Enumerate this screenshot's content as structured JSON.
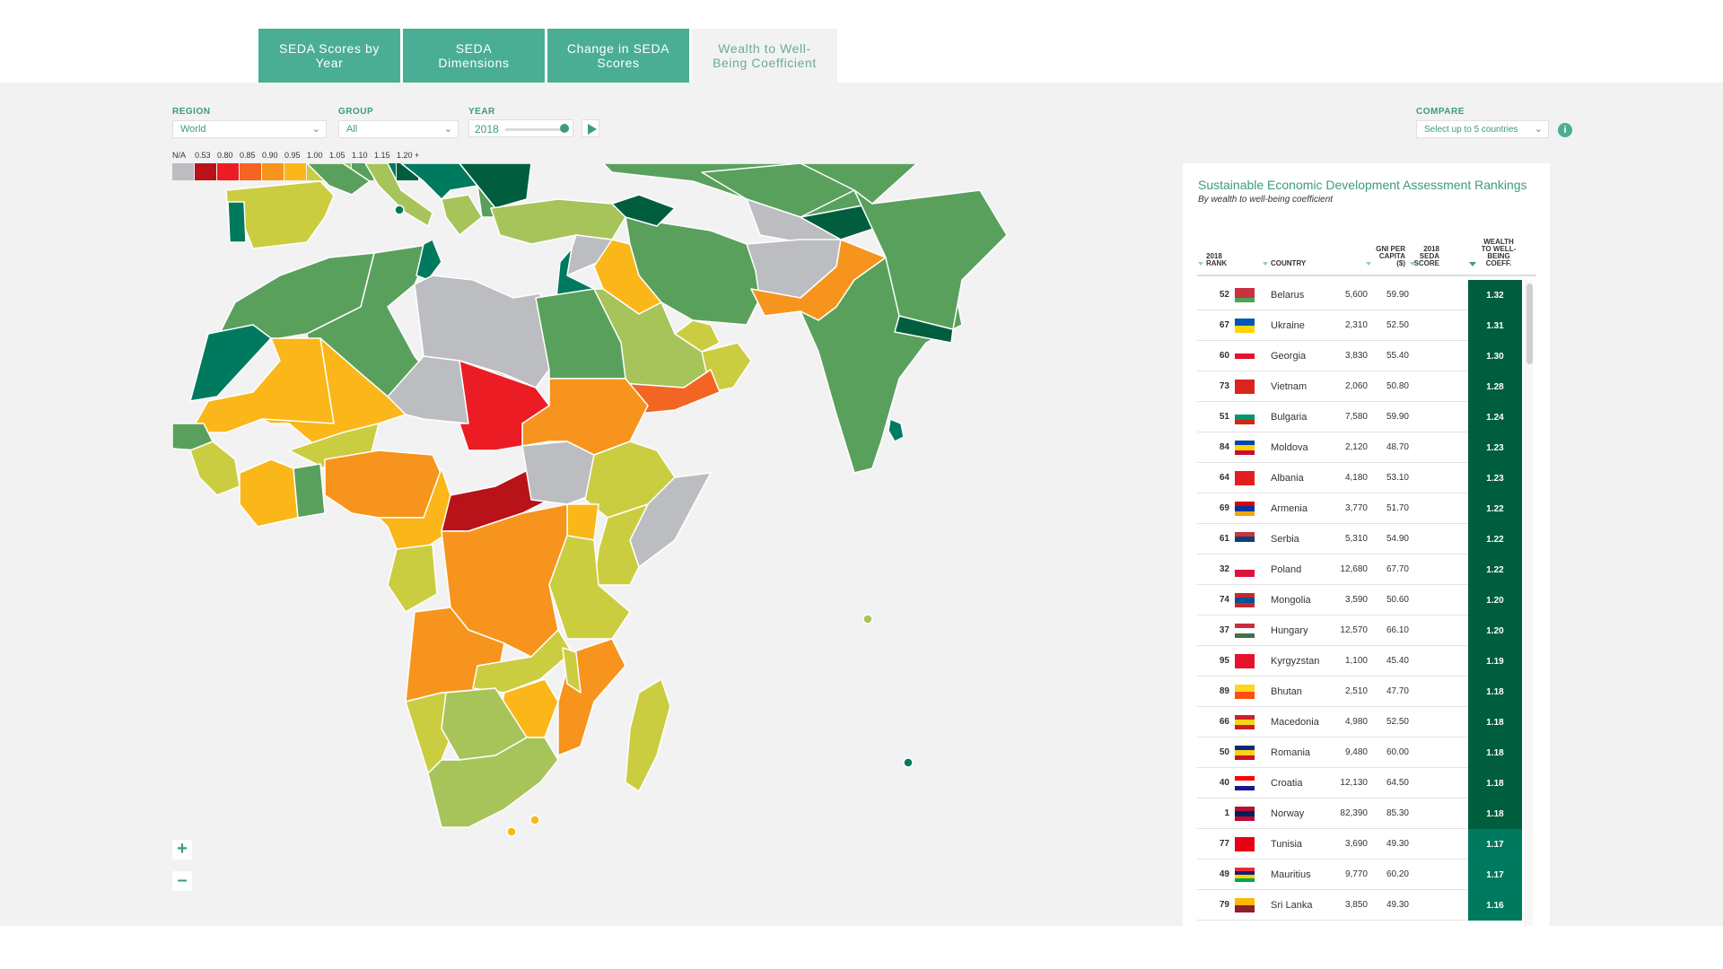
{
  "tabs": [
    {
      "label": "SEDA Scores by Year"
    },
    {
      "label": "SEDA Dimensions"
    },
    {
      "label": "Change in SEDA Scores"
    },
    {
      "label": "Wealth to Well-Being Coefficient"
    }
  ],
  "filters": {
    "region_label": "REGION",
    "region_value": "World",
    "group_label": "GROUP",
    "group_value": "All",
    "year_label": "YEAR",
    "year_value": "2018",
    "compare_label": "COMPARE",
    "compare_value": "Select up to 5 countries",
    "info_icon": "i"
  },
  "legend": {
    "labels": [
      "N/A",
      "0.53",
      "0.80",
      "0.85",
      "0.90",
      "0.95",
      "1.00",
      "1.05",
      "1.10",
      "1.15",
      "1.20 +"
    ],
    "colors": [
      "#bcbdc0",
      "#b81318",
      "#ec1c24",
      "#f26522",
      "#f7941d",
      "#fbb61a",
      "#cbcd41",
      "#a6c45a",
      "#5aa05d",
      "#007a5e",
      "#005e3f"
    ]
  },
  "map_colors": {
    "na": "#bcbdc0",
    "dark_red": "#b81318",
    "red": "#ec1c24",
    "red_orange": "#f26522",
    "orange": "#f7941d",
    "yellow": "#fbb61a",
    "yellow_green": "#cbcd41",
    "light_green": "#a6c45a",
    "green": "#5aa05d",
    "dark_green": "#007a5e",
    "darkest_green": "#005e3f",
    "ocean": "#f2f2f2"
  },
  "zoom": {
    "in_label": "+",
    "out_label": "–"
  },
  "rankings": {
    "title": "Sustainable Economic Development Assessment Rankings",
    "subtitle": "By wealth to well-being coefficient",
    "headers": {
      "rank": "2018 RANK",
      "country": "COUNTRY",
      "gni": "GNI PER CAPITA ($)",
      "seda": "2018 SEDA SCORE",
      "coef": "WEALTH TO WELL-BEING COEFF."
    },
    "rows": [
      {
        "rank": "52",
        "country": "Belarus",
        "gni": "5,600",
        "seda": "59.90",
        "coef": "1.32",
        "flag": [
          "#c8313e",
          "#c8313e",
          "#4aa657"
        ]
      },
      {
        "rank": "67",
        "country": "Ukraine",
        "gni": "2,310",
        "seda": "52.50",
        "coef": "1.31",
        "flag": [
          "#0057b7",
          "#ffd700"
        ]
      },
      {
        "rank": "60",
        "country": "Georgia",
        "gni": "3,830",
        "seda": "55.40",
        "coef": "1.30",
        "flag": [
          "#ffffff",
          "#e8112d",
          "#ffffff"
        ]
      },
      {
        "rank": "73",
        "country": "Vietnam",
        "gni": "2,060",
        "seda": "50.80",
        "coef": "1.28",
        "flag": [
          "#da251d"
        ]
      },
      {
        "rank": "51",
        "country": "Bulgaria",
        "gni": "7,580",
        "seda": "59.90",
        "coef": "1.24",
        "flag": [
          "#ffffff",
          "#00966e",
          "#d62612"
        ]
      },
      {
        "rank": "84",
        "country": "Moldova",
        "gni": "2,120",
        "seda": "48.70",
        "coef": "1.23",
        "flag": [
          "#0046ae",
          "#ffd200",
          "#cc092f"
        ]
      },
      {
        "rank": "64",
        "country": "Albania",
        "gni": "4,180",
        "seda": "53.10",
        "coef": "1.23",
        "flag": [
          "#e41e20"
        ]
      },
      {
        "rank": "69",
        "country": "Armenia",
        "gni": "3,770",
        "seda": "51.70",
        "coef": "1.22",
        "flag": [
          "#d90012",
          "#0033a0",
          "#f2a800"
        ]
      },
      {
        "rank": "61",
        "country": "Serbia",
        "gni": "5,310",
        "seda": "54.90",
        "coef": "1.22",
        "flag": [
          "#c6363c",
          "#0c4076",
          "#ffffff"
        ]
      },
      {
        "rank": "32",
        "country": "Poland",
        "gni": "12,680",
        "seda": "67.70",
        "coef": "1.22",
        "flag": [
          "#ffffff",
          "#dc143c"
        ]
      },
      {
        "rank": "74",
        "country": "Mongolia",
        "gni": "3,590",
        "seda": "50.60",
        "coef": "1.20",
        "flag": [
          "#c4272f",
          "#015197",
          "#c4272f"
        ]
      },
      {
        "rank": "37",
        "country": "Hungary",
        "gni": "12,570",
        "seda": "66.10",
        "coef": "1.20",
        "flag": [
          "#cd2a3e",
          "#ffffff",
          "#436f4d"
        ]
      },
      {
        "rank": "95",
        "country": "Kyrgyzstan",
        "gni": "1,100",
        "seda": "45.40",
        "coef": "1.19",
        "flag": [
          "#e8112d"
        ]
      },
      {
        "rank": "89",
        "country": "Bhutan",
        "gni": "2,510",
        "seda": "47.70",
        "coef": "1.18",
        "flag": [
          "#ffd520",
          "#ff4e12"
        ]
      },
      {
        "rank": "66",
        "country": "Macedonia",
        "gni": "4,980",
        "seda": "52.50",
        "coef": "1.18",
        "flag": [
          "#ce2028",
          "#f9d616",
          "#ce2028"
        ]
      },
      {
        "rank": "50",
        "country": "Romania",
        "gni": "9,480",
        "seda": "60.00",
        "coef": "1.18",
        "flag": [
          "#002b7f",
          "#fcd116",
          "#ce1126"
        ]
      },
      {
        "rank": "40",
        "country": "Croatia",
        "gni": "12,130",
        "seda": "64.50",
        "coef": "1.18",
        "flag": [
          "#ff0000",
          "#ffffff",
          "#171796"
        ]
      },
      {
        "rank": "1",
        "country": "Norway",
        "gni": "82,390",
        "seda": "85.30",
        "coef": "1.18",
        "flag": [
          "#ba0c2f",
          "#00205b",
          "#ba0c2f"
        ]
      },
      {
        "rank": "77",
        "country": "Tunisia",
        "gni": "3,690",
        "seda": "49.30",
        "coef": "1.17",
        "flag": [
          "#e70013"
        ]
      },
      {
        "rank": "49",
        "country": "Mauritius",
        "gni": "9,770",
        "seda": "60.20",
        "coef": "1.17",
        "flag": [
          "#ea2839",
          "#1a206d",
          "#ffd500",
          "#00a551"
        ]
      },
      {
        "rank": "79",
        "country": "Sri Lanka",
        "gni": "3,850",
        "seda": "49.30",
        "coef": "1.16",
        "flag": [
          "#ffb700",
          "#8d2029"
        ]
      },
      {
        "rank": "",
        "country": "",
        "gni": "",
        "seda": "",
        "coef": "",
        "flag": [
          "#ffffff",
          "#dddddd"
        ]
      }
    ]
  }
}
